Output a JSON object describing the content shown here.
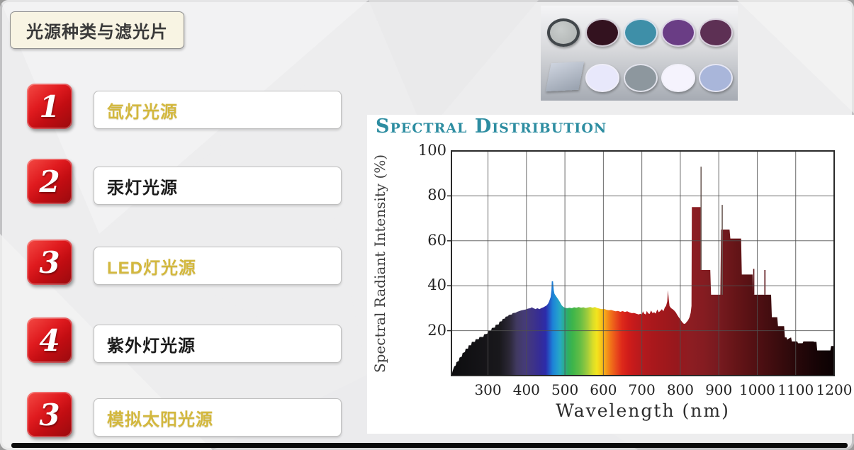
{
  "slide": {
    "title": "光源种类与滤光片",
    "accent_red": "#c20d12",
    "gold": "#d3b83e",
    "items": [
      {
        "num": "1",
        "label": "氙灯光源",
        "variant": "gold"
      },
      {
        "num": "2",
        "label": "汞灯光源",
        "variant": "dark"
      },
      {
        "num": "3",
        "label": "LED灯光源",
        "variant": "gold"
      },
      {
        "num": "4",
        "label": "紫外灯光源",
        "variant": "dark"
      },
      {
        "num": "3",
        "label": "模拟太阳光源",
        "variant": "gold"
      }
    ]
  },
  "filters_image": {
    "row1": [
      {
        "name": "gray-nd-filter",
        "fill": "#b9bdbc",
        "ring": "#42474b"
      },
      {
        "name": "dark-magenta-filter",
        "fill": "#33121f"
      },
      {
        "name": "teal-filter",
        "fill": "#3e8fa8"
      },
      {
        "name": "purple-filter",
        "fill": "#6a3d85"
      },
      {
        "name": "plum-filter",
        "fill": "#5d3054"
      }
    ],
    "row2": [
      {
        "name": "square-glass-plate",
        "fill": "#b7bfce"
      },
      {
        "name": "pale-lavender-filter",
        "fill": "#e8e8fb"
      },
      {
        "name": "gray-filter",
        "fill": "#8d979e"
      },
      {
        "name": "white-filter",
        "fill": "#f5f3fd"
      },
      {
        "name": "periwinkle-filter",
        "fill": "#a9b6da"
      }
    ]
  },
  "chart_data": {
    "type": "area",
    "title": "Spectral Distribution",
    "xlabel": "Wavelength (nm)",
    "ylabel": "Spectral Radiant Intensity (%)",
    "xlim": [
      205,
      1200
    ],
    "ylim": [
      0,
      100
    ],
    "x_ticks": [
      300,
      400,
      500,
      600,
      700,
      800,
      900,
      1000,
      1100,
      1200
    ],
    "y_ticks": [
      20,
      40,
      60,
      80,
      100
    ],
    "grid": true,
    "points": [
      [
        205,
        0
      ],
      [
        208,
        2
      ],
      [
        212,
        4
      ],
      [
        216,
        4.5
      ],
      [
        218,
        6
      ],
      [
        224,
        6.5
      ],
      [
        226,
        8
      ],
      [
        232,
        8.5
      ],
      [
        234,
        10
      ],
      [
        240,
        10.5
      ],
      [
        242,
        12
      ],
      [
        248,
        12
      ],
      [
        250,
        13.5
      ],
      [
        256,
        13.5
      ],
      [
        258,
        15
      ],
      [
        266,
        15
      ],
      [
        268,
        16.2
      ],
      [
        276,
        16.2
      ],
      [
        278,
        17.2
      ],
      [
        288,
        17.2
      ],
      [
        290,
        18.4
      ],
      [
        298,
        18.6
      ],
      [
        300,
        19.8
      ],
      [
        308,
        20
      ],
      [
        310,
        21.2
      ],
      [
        318,
        21.4
      ],
      [
        320,
        22.6
      ],
      [
        328,
        22.8
      ],
      [
        330,
        24
      ],
      [
        336,
        24.2
      ],
      [
        338,
        25.2
      ],
      [
        344,
        25.4
      ],
      [
        346,
        26.2
      ],
      [
        352,
        26.4
      ],
      [
        354,
        27
      ],
      [
        362,
        27.2
      ],
      [
        364,
        27.8
      ],
      [
        372,
        28
      ],
      [
        376,
        28.4
      ],
      [
        380,
        28.6
      ],
      [
        386,
        29
      ],
      [
        392,
        29.2
      ],
      [
        398,
        29.4
      ],
      [
        404,
        29.8
      ],
      [
        410,
        30
      ],
      [
        414,
        30.4
      ],
      [
        418,
        30
      ],
      [
        424,
        29.6
      ],
      [
        428,
        30
      ],
      [
        434,
        29.6
      ],
      [
        438,
        30
      ],
      [
        444,
        30.4
      ],
      [
        448,
        30.8
      ],
      [
        452,
        31.2
      ],
      [
        456,
        32
      ],
      [
        459,
        33
      ],
      [
        461,
        34
      ],
      [
        463,
        35
      ],
      [
        465,
        38
      ],
      [
        466,
        42
      ],
      [
        469,
        42
      ],
      [
        471,
        38
      ],
      [
        473,
        36.4
      ],
      [
        476,
        35.6
      ],
      [
        480,
        34.6
      ],
      [
        484,
        33.6
      ],
      [
        488,
        32.4
      ],
      [
        492,
        31.2
      ],
      [
        496,
        30.6
      ],
      [
        500,
        30.2
      ],
      [
        506,
        30
      ],
      [
        512,
        30.2
      ],
      [
        518,
        30
      ],
      [
        524,
        30.4
      ],
      [
        530,
        30.2
      ],
      [
        536,
        30.5
      ],
      [
        542,
        30.2
      ],
      [
        548,
        30.4
      ],
      [
        554,
        30.1
      ],
      [
        560,
        30.3
      ],
      [
        566,
        30.5
      ],
      [
        572,
        30.2
      ],
      [
        578,
        30.5
      ],
      [
        584,
        30.1
      ],
      [
        590,
        29.8
      ],
      [
        596,
        29.6
      ],
      [
        602,
        29.7
      ],
      [
        608,
        29.3
      ],
      [
        614,
        29.1
      ],
      [
        620,
        29.2
      ],
      [
        626,
        28.9
      ],
      [
        632,
        28.6
      ],
      [
        638,
        28.8
      ],
      [
        644,
        28.4
      ],
      [
        650,
        28.7
      ],
      [
        656,
        28.3
      ],
      [
        662,
        28.6
      ],
      [
        668,
        28.1
      ],
      [
        674,
        27.8
      ],
      [
        680,
        27.9
      ],
      [
        686,
        27.5
      ],
      [
        692,
        27.2
      ],
      [
        696,
        27.5
      ],
      [
        700,
        27.2
      ],
      [
        703,
        28.6
      ],
      [
        706,
        27.6
      ],
      [
        710,
        27.2
      ],
      [
        713,
        28.8
      ],
      [
        716,
        27.8
      ],
      [
        720,
        27.4
      ],
      [
        724,
        29
      ],
      [
        728,
        27.8
      ],
      [
        732,
        28.2
      ],
      [
        736,
        27.6
      ],
      [
        740,
        29.4
      ],
      [
        744,
        28.2
      ],
      [
        748,
        28.8
      ],
      [
        752,
        29.6
      ],
      [
        756,
        28.6
      ],
      [
        760,
        30.4
      ],
      [
        763,
        31
      ],
      [
        766,
        33
      ],
      [
        768,
        38
      ],
      [
        770,
        34
      ],
      [
        772,
        31
      ],
      [
        776,
        30
      ],
      [
        780,
        29.6
      ],
      [
        784,
        29
      ],
      [
        788,
        28.2
      ],
      [
        792,
        27
      ],
      [
        796,
        26
      ],
      [
        800,
        25
      ],
      [
        804,
        24
      ],
      [
        808,
        23.2
      ],
      [
        812,
        23
      ],
      [
        816,
        23.8
      ],
      [
        820,
        24.6
      ],
      [
        824,
        26
      ],
      [
        827,
        28
      ],
      [
        829,
        31
      ],
      [
        830,
        75
      ],
      [
        853,
        75
      ],
      [
        854,
        47
      ],
      [
        878,
        47
      ],
      [
        880,
        36
      ],
      [
        904,
        36
      ],
      [
        906,
        65
      ],
      [
        928,
        65
      ],
      [
        930,
        61
      ],
      [
        958,
        61
      ],
      [
        960,
        45
      ],
      [
        988,
        45
      ],
      [
        990,
        36
      ],
      [
        1036,
        36
      ],
      [
        1038,
        26
      ],
      [
        1052,
        26
      ],
      [
        1054,
        22
      ],
      [
        1070,
        22
      ],
      [
        1072,
        17
      ],
      [
        1076,
        17
      ],
      [
        1078,
        16
      ],
      [
        1082,
        16.5
      ],
      [
        1088,
        17
      ],
      [
        1090,
        15.2
      ],
      [
        1104,
        15.2
      ],
      [
        1106,
        14.4
      ],
      [
        1118,
        14.4
      ],
      [
        1120,
        15.2
      ],
      [
        1146,
        15.2
      ],
      [
        1148,
        15
      ],
      [
        1154,
        15
      ],
      [
        1156,
        11.2
      ],
      [
        1190,
        11.2
      ],
      [
        1192,
        13.2
      ],
      [
        1200,
        13.2
      ]
    ],
    "line_spikes": [
      {
        "nm": 854,
        "from": 47,
        "to": 93,
        "color": "#70605a"
      },
      {
        "nm": 909,
        "from": 36,
        "to": 76,
        "color": "#70605a"
      },
      {
        "nm": 991,
        "from": 36,
        "to": 47.5,
        "color": "#5a1014"
      },
      {
        "nm": 1020,
        "from": 36,
        "to": 47,
        "color": "#5a1014"
      }
    ],
    "spectrum_stops": [
      [
        205,
        "#0d0d0f"
      ],
      [
        330,
        "#19181c"
      ],
      [
        355,
        "#2b2736"
      ],
      [
        375,
        "#413a62"
      ],
      [
        395,
        "#453b78"
      ],
      [
        415,
        "#3f3486"
      ],
      [
        435,
        "#352c97"
      ],
      [
        450,
        "#2c2caa"
      ],
      [
        460,
        "#2359c6"
      ],
      [
        468,
        "#1d80d6"
      ],
      [
        478,
        "#2197d2"
      ],
      [
        488,
        "#28a9c2"
      ],
      [
        498,
        "#2aac90"
      ],
      [
        508,
        "#30ae60"
      ],
      [
        520,
        "#3db54a"
      ],
      [
        540,
        "#65bd45"
      ],
      [
        558,
        "#9ecb3d"
      ],
      [
        572,
        "#d7dc2a"
      ],
      [
        583,
        "#f2e51e"
      ],
      [
        594,
        "#f6c619"
      ],
      [
        606,
        "#f59f1a"
      ],
      [
        620,
        "#f07019"
      ],
      [
        634,
        "#e84a1c"
      ],
      [
        648,
        "#de2a1a"
      ],
      [
        665,
        "#d01c1a"
      ],
      [
        685,
        "#c01a1c"
      ],
      [
        710,
        "#b0191d"
      ],
      [
        745,
        "#a4181c"
      ],
      [
        790,
        "#97181d"
      ],
      [
        830,
        "#8c1d22"
      ],
      [
        860,
        "#851c21"
      ],
      [
        900,
        "#771a1f"
      ],
      [
        940,
        "#671518"
      ],
      [
        980,
        "#581114"
      ],
      [
        1020,
        "#480e11"
      ],
      [
        1060,
        "#380b0d"
      ],
      [
        1100,
        "#29080a"
      ],
      [
        1140,
        "#1b0507"
      ],
      [
        1170,
        "#120304"
      ],
      [
        1200,
        "#0c0203"
      ]
    ]
  }
}
